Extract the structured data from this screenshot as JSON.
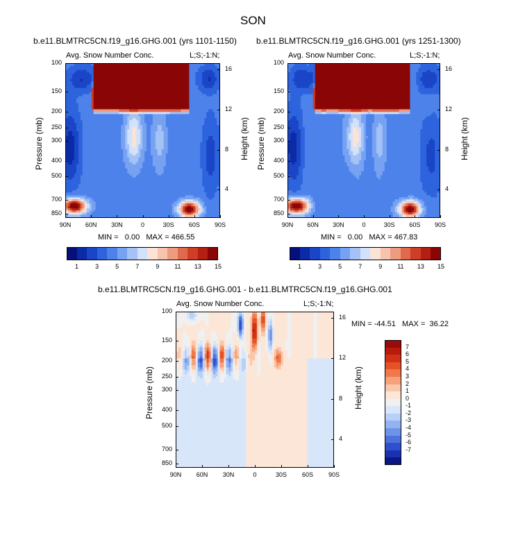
{
  "page": {
    "title": "SON",
    "diff_title": "b.e11.BLMTRC5CN.f19_g16.GHG.001 - b.e11.BLMTRC5CN.f19_g16.GHG.001"
  },
  "chart_data": [
    {
      "type": "heatmap",
      "id": "left",
      "title": "b.e11.BLMTRC5CN.f19_g16.GHG.001 (yrs 1101-1150)",
      "left_string": "Avg. Snow Number Conc.",
      "right_string": "L;S;-1:N;",
      "xlabel": "",
      "ylabel": "Pressure (mb)",
      "ylabel_right": "Height (km)",
      "x_ticks": [
        "90N",
        "60N",
        "30N",
        "0",
        "30S",
        "60S",
        "90S"
      ],
      "y_ticks": [
        "100",
        "150",
        "200",
        "250",
        "300",
        "400",
        "500",
        "700",
        "850"
      ],
      "y2_ticks": [
        "16",
        "12",
        "8",
        "4"
      ],
      "min_max": "MIN =   0.00   MAX = 466.55",
      "colorbar_labels": [
        "1",
        "3",
        "5",
        "7",
        "9",
        "11",
        "13",
        "15"
      ],
      "colorbar_colors": [
        "#07107a",
        "#0a2aa6",
        "#1a45c6",
        "#2d63dc",
        "#4d82ea",
        "#77a2f2",
        "#a4c2f6",
        "#d3e2fb",
        "#fbe3d6",
        "#f6c3ac",
        "#ee9c80",
        "#e16a4d",
        "#cf3e27",
        "#b41f11",
        "#8a0606"
      ]
    },
    {
      "type": "heatmap",
      "id": "right",
      "title": "b.e11.BLMTRC5CN.f19_g16.GHG.001 (yrs 1251-1300)",
      "left_string": "Avg. Snow Number Conc.",
      "right_string": "L;S;-1:N;",
      "xlabel": "",
      "ylabel": "Pressure (mb)",
      "ylabel_right": "Height (km)",
      "x_ticks": [
        "90N",
        "60N",
        "30N",
        "0",
        "30S",
        "60S",
        "90S"
      ],
      "y_ticks": [
        "100",
        "150",
        "200",
        "250",
        "300",
        "400",
        "500",
        "700",
        "850"
      ],
      "y2_ticks": [
        "16",
        "12",
        "8",
        "4"
      ],
      "min_max": "MIN =   0.00   MAX = 467.83",
      "colorbar_labels": [
        "1",
        "3",
        "5",
        "7",
        "9",
        "11",
        "13",
        "15"
      ],
      "colorbar_colors": [
        "#07107a",
        "#0a2aa6",
        "#1a45c6",
        "#2d63dc",
        "#4d82ea",
        "#77a2f2",
        "#a4c2f6",
        "#d3e2fb",
        "#fbe3d6",
        "#f6c3ac",
        "#ee9c80",
        "#e16a4d",
        "#cf3e27",
        "#b41f11",
        "#8a0606"
      ]
    },
    {
      "type": "heatmap",
      "id": "diff",
      "title": "b.e11.BLMTRC5CN.f19_g16.GHG.001 - b.e11.BLMTRC5CN.f19_g16.GHG.001",
      "left_string": "Avg. Snow Number Conc.",
      "right_string": "L;S;-1:N;",
      "xlabel": "",
      "ylabel": "Pressure (mb)",
      "ylabel_right": "Height (km)",
      "x_ticks": [
        "90N",
        "60N",
        "30N",
        "0",
        "30S",
        "60S",
        "90S"
      ],
      "y_ticks": [
        "100",
        "150",
        "200",
        "250",
        "300",
        "400",
        "500",
        "700",
        "850"
      ],
      "y2_ticks": [
        "16",
        "12",
        "8",
        "4"
      ],
      "min_max": "MIN = -44.51   MAX =  36.22",
      "colorbar_labels": [
        "7",
        "6",
        "5",
        "4",
        "3",
        "2",
        "1",
        "0",
        "-1",
        "-2",
        "-3",
        "-4",
        "-5",
        "-6",
        "-7"
      ],
      "colorbar_colors": [
        "#9a0a08",
        "#b81a0c",
        "#d03216",
        "#e45226",
        "#f0784a",
        "#f6a17a",
        "#f9c7aa",
        "#fbe6d7",
        "#f0f0f0",
        "#d8e6fa",
        "#b8d0f7",
        "#92b2f0",
        "#6f93e8",
        "#4d72dc",
        "#2f4fcc",
        "#1b32b0",
        "#0b1784"
      ]
    }
  ]
}
